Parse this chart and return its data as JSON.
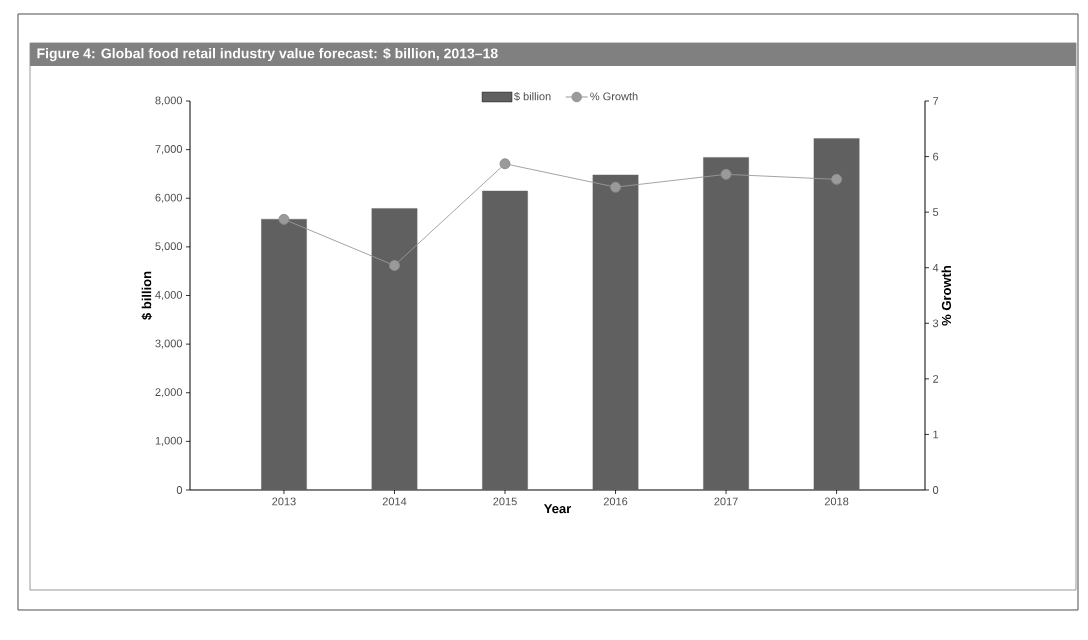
{
  "chart_data": {
    "type": "bar",
    "title": "Figure 4: Global food retail industry value forecast: $ billion, 2013–18",
    "xlabel": "Year",
    "ylabel": "$ billion",
    "y2label": "% Growth",
    "categories": [
      "2013",
      "2014",
      "2015",
      "2016",
      "2017",
      "2018"
    ],
    "series": [
      {
        "name": "$ billion",
        "color": "#606060",
        "values": [
          5570,
          5790,
          6150,
          6480,
          6840,
          7230
        ]
      },
      {
        "name": "% Growth",
        "type": "line",
        "axis": "y2",
        "color": "#9a9a9a",
        "values": [
          4.87,
          4.04,
          5.87,
          5.45,
          5.68,
          5.59
        ]
      }
    ],
    "ylim": [
      0,
      8000
    ],
    "yticks": [
      0,
      {
        "value": 1000,
        "label": "1,000"
      },
      {
        "value": 2000,
        "label": "2,000"
      },
      {
        "value": 3000,
        "label": "3,000"
      },
      {
        "value": 4000,
        "label": "4,000"
      },
      {
        "value": 5000,
        "label": "5,000"
      },
      {
        "value": 6000,
        "label": "6,000"
      },
      {
        "value": 7000,
        "label": "7,000"
      },
      {
        "value": 8000,
        "label": "8,000"
      }
    ],
    "y2lim": [
      0,
      7
    ],
    "y2ticks": [
      0,
      1,
      2,
      3,
      4,
      5,
      6,
      7
    ],
    "legend": "top",
    "grid": false,
    "marker": "circle"
  }
}
